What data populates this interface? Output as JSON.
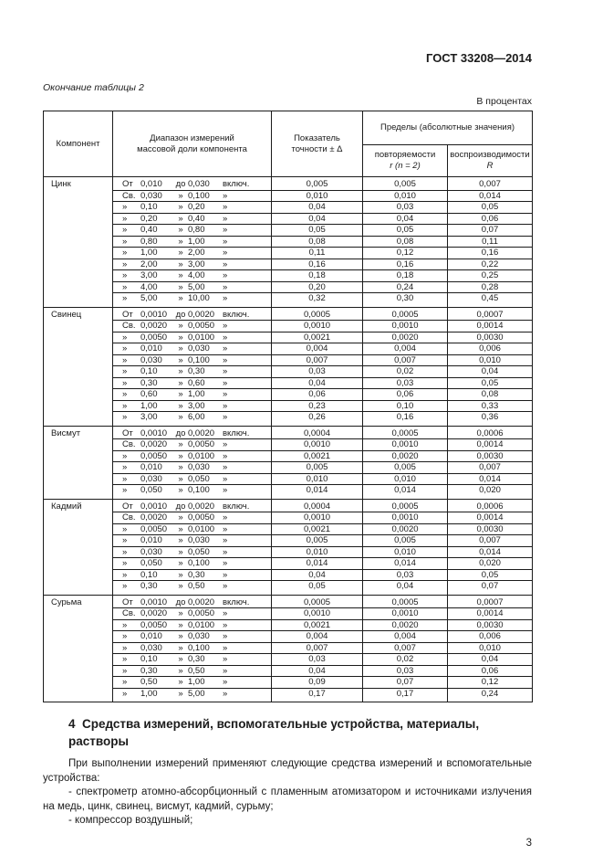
{
  "header": {
    "doc_number": "ГОСТ 33208—2014"
  },
  "table": {
    "caption": "Окончание таблицы 2",
    "units_note": "В процентах",
    "columns": {
      "component": "Компонент",
      "range": "Диапазон измерений\nмассовой доли компонента",
      "accuracy": "Показатель\nточности ± Δ",
      "limits_group": "Пределы (абсолютные значения)",
      "repeatability_label": "повторяемости",
      "repeatability_sub": "r (n = 2)",
      "reproducibility_label": "воспроизводимости",
      "reproducibility_sub": "R"
    },
    "sections": [
      {
        "component": "Цинк",
        "rows": [
          [
            "От",
            "0,010",
            "до",
            "0,030",
            "включ.",
            "0,005",
            "0,005",
            "0,007"
          ],
          [
            "Св.",
            "0,030",
            "»",
            "0,100",
            "»",
            "0,010",
            "0,010",
            "0,014"
          ],
          [
            "»",
            "0,10",
            "»",
            "0,20",
            "»",
            "0,04",
            "0,03",
            "0,05"
          ],
          [
            "»",
            "0,20",
            "»",
            "0,40",
            "»",
            "0,04",
            "0,04",
            "0,06"
          ],
          [
            "»",
            "0,40",
            "»",
            "0,80",
            "»",
            "0,05",
            "0,05",
            "0,07"
          ],
          [
            "»",
            "0,80",
            "»",
            "1,00",
            "»",
            "0,08",
            "0,08",
            "0,11"
          ],
          [
            "»",
            "1,00",
            "»",
            "2,00",
            "»",
            "0,11",
            "0,12",
            "0,16"
          ],
          [
            "»",
            "2,00",
            "»",
            "3,00",
            "»",
            "0,16",
            "0,16",
            "0,22"
          ],
          [
            "»",
            "3,00",
            "»",
            "4,00",
            "»",
            "0,18",
            "0,18",
            "0,25"
          ],
          [
            "»",
            "4,00",
            "»",
            "5,00",
            "»",
            "0,20",
            "0,24",
            "0,28"
          ],
          [
            "»",
            "5,00",
            "»",
            "10,00",
            "»",
            "0,32",
            "0,30",
            "0,45"
          ]
        ]
      },
      {
        "component": "Свинец",
        "rows": [
          [
            "От",
            "0,0010",
            "до",
            "0,0020",
            "включ.",
            "0,0005",
            "0,0005",
            "0,0007"
          ],
          [
            "Св.",
            "0,0020",
            "»",
            "0,0050",
            "»",
            "0,0010",
            "0,0010",
            "0,0014"
          ],
          [
            "»",
            "0,0050",
            "»",
            "0,0100",
            "»",
            "0,0021",
            "0,0020",
            "0,0030"
          ],
          [
            "»",
            "0,010",
            "»",
            "0,030",
            "»",
            "0,004",
            "0,004",
            "0,006"
          ],
          [
            "»",
            "0,030",
            "»",
            "0,100",
            "»",
            "0,007",
            "0,007",
            "0,010"
          ],
          [
            "»",
            "0,10",
            "»",
            "0,30",
            "»",
            "0,03",
            "0,02",
            "0,04"
          ],
          [
            "»",
            "0,30",
            "»",
            "0,60",
            "»",
            "0,04",
            "0,03",
            "0,05"
          ],
          [
            "»",
            "0,60",
            "»",
            "1,00",
            "»",
            "0,06",
            "0,06",
            "0,08"
          ],
          [
            "»",
            "1,00",
            "»",
            "3,00",
            "»",
            "0,23",
            "0,10",
            "0,33"
          ],
          [
            "»",
            "3,00",
            "»",
            "6,00",
            "»",
            "0,26",
            "0,16",
            "0,36"
          ]
        ]
      },
      {
        "component": "Висмут",
        "rows": [
          [
            "От",
            "0,0010",
            "до",
            "0,0020",
            "включ.",
            "0,0004",
            "0,0005",
            "0,0006"
          ],
          [
            "Св.",
            "0,0020",
            "»",
            "0,0050",
            "»",
            "0,0010",
            "0,0010",
            "0,0014"
          ],
          [
            "»",
            "0,0050",
            "»",
            "0,0100",
            "»",
            "0,0021",
            "0,0020",
            "0,0030"
          ],
          [
            "»",
            "0,010",
            "»",
            "0,030",
            "»",
            "0,005",
            "0,005",
            "0,007"
          ],
          [
            "»",
            "0,030",
            "»",
            "0,050",
            "»",
            "0,010",
            "0,010",
            "0,014"
          ],
          [
            "»",
            "0,050",
            "»",
            "0,100",
            "»",
            "0,014",
            "0,014",
            "0,020"
          ]
        ]
      },
      {
        "component": "Кадмий",
        "rows": [
          [
            "От",
            "0,0010",
            "до",
            "0,0020",
            "включ.",
            "0,0004",
            "0,0005",
            "0,0006"
          ],
          [
            "Св.",
            "0,0020",
            "»",
            "0,0050",
            "»",
            "0,0010",
            "0,0010",
            "0,0014"
          ],
          [
            "»",
            "0,0050",
            "»",
            "0,0100",
            "»",
            "0,0021",
            "0,0020",
            "0,0030"
          ],
          [
            "»",
            "0,010",
            "»",
            "0,030",
            "»",
            "0,005",
            "0,005",
            "0,007"
          ],
          [
            "»",
            "0,030",
            "»",
            "0,050",
            "»",
            "0,010",
            "0,010",
            "0,014"
          ],
          [
            "»",
            "0,050",
            "»",
            "0,100",
            "»",
            "0,014",
            "0,014",
            "0,020"
          ],
          [
            "»",
            "0,10",
            "»",
            "0,30",
            "»",
            "0,04",
            "0,03",
            "0,05"
          ],
          [
            "»",
            "0,30",
            "»",
            "0,50",
            "»",
            "0,05",
            "0,04",
            "0,07"
          ]
        ]
      },
      {
        "component": "Сурьма",
        "rows": [
          [
            "От",
            "0,0010",
            "до",
            "0,0020",
            "включ.",
            "0,0005",
            "0,0005",
            "0,0007"
          ],
          [
            "Св.",
            "0,0020",
            "»",
            "0,0050",
            "»",
            "0,0010",
            "0,0010",
            "0,0014"
          ],
          [
            "»",
            "0,0050",
            "»",
            "0,0100",
            "»",
            "0,0021",
            "0,0020",
            "0,0030"
          ],
          [
            "»",
            "0,010",
            "»",
            "0,030",
            "»",
            "0,004",
            "0,004",
            "0,006"
          ],
          [
            "»",
            "0,030",
            "»",
            "0,100",
            "»",
            "0,007",
            "0,007",
            "0,010"
          ],
          [
            "»",
            "0,10",
            "»",
            "0,30",
            "»",
            "0,03",
            "0,02",
            "0,04"
          ],
          [
            "»",
            "0,30",
            "»",
            "0,50",
            "»",
            "0,04",
            "0,03",
            "0,06"
          ],
          [
            "»",
            "0,50",
            "»",
            "1,00",
            "»",
            "0,09",
            "0,07",
            "0,12"
          ],
          [
            "»",
            "1,00",
            "»",
            "5,00",
            "»",
            "0,17",
            "0,17",
            "0,24"
          ]
        ]
      }
    ]
  },
  "section4": {
    "heading": "4  Средства измерений, вспомогательные устройства, материалы, растворы",
    "paragraphs": [
      "При выполнении измерений применяют следующие средства измерений и вспомогательные устройства:",
      "- спектрометр атомно-абсорбционный с пламенным атомизатором и источниками излучения на медь, цинк, свинец, висмут, кадмий, сурьму;",
      "- компрессор воздушный;"
    ]
  },
  "footer": {
    "page_number": "3"
  }
}
